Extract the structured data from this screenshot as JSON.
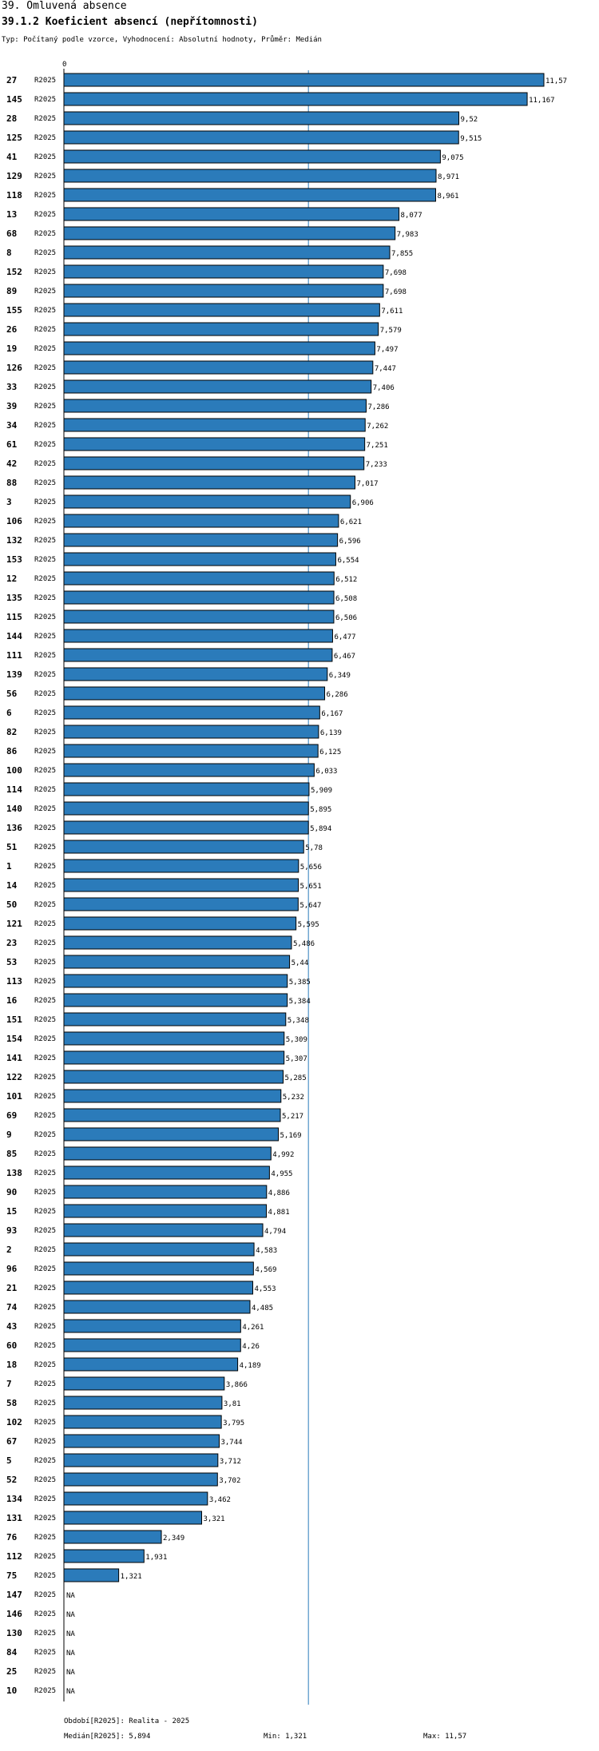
{
  "header": {
    "title": "39. Omluvená absence",
    "subtitle": "39.1.2 Koeficient absencí (nepřítomnosti)",
    "info": "Typ: Počítaný podle vzorce, Vyhodnocení: Absolutní hodnoty, Průměr: Medián",
    "zero_tick": "0"
  },
  "footer": {
    "period": "Období[R2025]: Realita - 2025",
    "median": "Medián[R2025]: 5,894",
    "min": "Min: 1,321",
    "max": "Max: 11,57"
  },
  "colors": {
    "bar": "#2b7bba",
    "bar_border": "#000000",
    "median_line": "#2b7bba"
  },
  "chart_data": {
    "type": "bar",
    "orientation": "horizontal",
    "title": "39.1.2 Koeficient absencí (nepřítomnosti)",
    "series_name": "R2025",
    "median": 5.894,
    "min": 1.321,
    "max": 11.57,
    "xlim": [
      0,
      11.57
    ],
    "categories": [
      "27",
      "145",
      "28",
      "125",
      "41",
      "129",
      "118",
      "13",
      "68",
      "8",
      "152",
      "89",
      "155",
      "26",
      "19",
      "126",
      "33",
      "39",
      "34",
      "61",
      "42",
      "88",
      "3",
      "106",
      "132",
      "153",
      "12",
      "135",
      "115",
      "144",
      "111",
      "139",
      "56",
      "6",
      "82",
      "86",
      "100",
      "114",
      "140",
      "136",
      "51",
      "1",
      "14",
      "50",
      "121",
      "23",
      "53",
      "113",
      "16",
      "151",
      "154",
      "141",
      "122",
      "101",
      "69",
      "9",
      "85",
      "138",
      "90",
      "15",
      "93",
      "2",
      "96",
      "21",
      "74",
      "43",
      "60",
      "18",
      "7",
      "58",
      "102",
      "67",
      "5",
      "52",
      "134",
      "131",
      "76",
      "112",
      "75",
      "147",
      "146",
      "130",
      "84",
      "25",
      "10"
    ],
    "values": [
      11.57,
      11.167,
      9.52,
      9.515,
      9.075,
      8.971,
      8.961,
      8.077,
      7.983,
      7.855,
      7.698,
      7.698,
      7.611,
      7.579,
      7.497,
      7.447,
      7.406,
      7.286,
      7.262,
      7.251,
      7.233,
      7.017,
      6.906,
      6.621,
      6.596,
      6.554,
      6.512,
      6.508,
      6.506,
      6.477,
      6.467,
      6.349,
      6.286,
      6.167,
      6.139,
      6.125,
      6.033,
      5.909,
      5.895,
      5.894,
      5.78,
      5.656,
      5.651,
      5.647,
      5.595,
      5.486,
      5.44,
      5.385,
      5.384,
      5.348,
      5.309,
      5.307,
      5.285,
      5.232,
      5.217,
      5.169,
      4.992,
      4.955,
      4.886,
      4.881,
      4.794,
      4.583,
      4.569,
      4.553,
      4.485,
      4.261,
      4.26,
      4.189,
      3.866,
      3.81,
      3.795,
      3.744,
      3.712,
      3.702,
      3.462,
      3.321,
      2.349,
      1.931,
      1.321,
      null,
      null,
      null,
      null,
      null,
      null
    ],
    "value_labels": [
      "11,57",
      "11,167",
      "9,52",
      "9,515",
      "9,075",
      "8,971",
      "8,961",
      "8,077",
      "7,983",
      "7,855",
      "7,698",
      "7,698",
      "7,611",
      "7,579",
      "7,497",
      "7,447",
      "7,406",
      "7,286",
      "7,262",
      "7,251",
      "7,233",
      "7,017",
      "6,906",
      "6,621",
      "6,596",
      "6,554",
      "6,512",
      "6,508",
      "6,506",
      "6,477",
      "6,467",
      "6,349",
      "6,286",
      "6,167",
      "6,139",
      "6,125",
      "6,033",
      "5,909",
      "5,895",
      "5,894",
      "5,78",
      "5,656",
      "5,651",
      "5,647",
      "5,595",
      "5,486",
      "5,44",
      "5,385",
      "5,384",
      "5,348",
      "5,309",
      "5,307",
      "5,285",
      "5,232",
      "5,217",
      "5,169",
      "4,992",
      "4,955",
      "4,886",
      "4,881",
      "4,794",
      "4,583",
      "4,569",
      "4,553",
      "4,485",
      "4,261",
      "4,26",
      "4,189",
      "3,866",
      "3,81",
      "3,795",
      "3,744",
      "3,712",
      "3,702",
      "3,462",
      "3,321",
      "2,349",
      "1,931",
      "1,321",
      "NA",
      "NA",
      "NA",
      "NA",
      "NA",
      "NA"
    ]
  }
}
